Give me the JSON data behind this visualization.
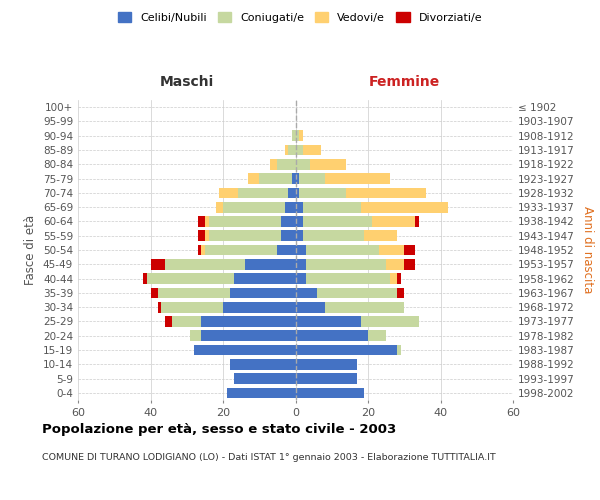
{
  "age_groups": [
    "0-4",
    "5-9",
    "10-14",
    "15-19",
    "20-24",
    "25-29",
    "30-34",
    "35-39",
    "40-44",
    "45-49",
    "50-54",
    "55-59",
    "60-64",
    "65-69",
    "70-74",
    "75-79",
    "80-84",
    "85-89",
    "90-94",
    "95-99",
    "100+"
  ],
  "birth_years": [
    "1998-2002",
    "1993-1997",
    "1988-1992",
    "1983-1987",
    "1978-1982",
    "1973-1977",
    "1968-1972",
    "1963-1967",
    "1958-1962",
    "1953-1957",
    "1948-1952",
    "1943-1947",
    "1938-1942",
    "1933-1937",
    "1928-1932",
    "1923-1927",
    "1918-1922",
    "1913-1917",
    "1908-1912",
    "1903-1907",
    "≤ 1902"
  ],
  "male": {
    "celibi": [
      19,
      17,
      18,
      28,
      26,
      26,
      20,
      18,
      17,
      14,
      5,
      4,
      4,
      3,
      2,
      1,
      0,
      0,
      0,
      0,
      0
    ],
    "coniugati": [
      0,
      0,
      0,
      0,
      3,
      8,
      17,
      20,
      24,
      22,
      20,
      20,
      20,
      17,
      14,
      9,
      5,
      2,
      1,
      0,
      0
    ],
    "vedovi": [
      0,
      0,
      0,
      0,
      0,
      0,
      0,
      0,
      0,
      0,
      1,
      1,
      1,
      2,
      5,
      3,
      2,
      1,
      0,
      0,
      0
    ],
    "divorziati": [
      0,
      0,
      0,
      0,
      0,
      2,
      1,
      2,
      1,
      4,
      1,
      2,
      2,
      0,
      0,
      0,
      0,
      0,
      0,
      0,
      0
    ]
  },
  "female": {
    "nubili": [
      19,
      17,
      17,
      28,
      20,
      18,
      8,
      6,
      3,
      3,
      3,
      2,
      2,
      2,
      1,
      1,
      0,
      0,
      0,
      0,
      0
    ],
    "coniugate": [
      0,
      0,
      0,
      1,
      5,
      16,
      22,
      22,
      23,
      22,
      20,
      17,
      19,
      16,
      13,
      7,
      4,
      2,
      1,
      0,
      0
    ],
    "vedove": [
      0,
      0,
      0,
      0,
      0,
      0,
      0,
      0,
      2,
      5,
      7,
      9,
      12,
      24,
      22,
      18,
      10,
      5,
      1,
      0,
      0
    ],
    "divorziate": [
      0,
      0,
      0,
      0,
      0,
      0,
      0,
      2,
      1,
      3,
      3,
      0,
      1,
      0,
      0,
      0,
      0,
      0,
      0,
      0,
      0
    ]
  },
  "colors": {
    "celibi": "#4472C4",
    "coniugati": "#C6D8A0",
    "vedovi": "#FFD070",
    "divorziati": "#CC0000"
  },
  "xlim": 60,
  "title": "Popolazione per età, sesso e stato civile - 2003",
  "subtitle": "COMUNE DI TURANO LODIGIANO (LO) - Dati ISTAT 1° gennaio 2003 - Elaborazione TUTTITALIA.IT",
  "ylabel_left": "Fasce di età",
  "ylabel_right": "Anni di nascita",
  "header_left": "Maschi",
  "header_right": "Femmine",
  "legend_labels": [
    "Celibi/Nubili",
    "Coniugati/e",
    "Vedovi/e",
    "Divorziati/e"
  ],
  "bg_color": "#FFFFFF",
  "grid_color": "#CCCCCC"
}
